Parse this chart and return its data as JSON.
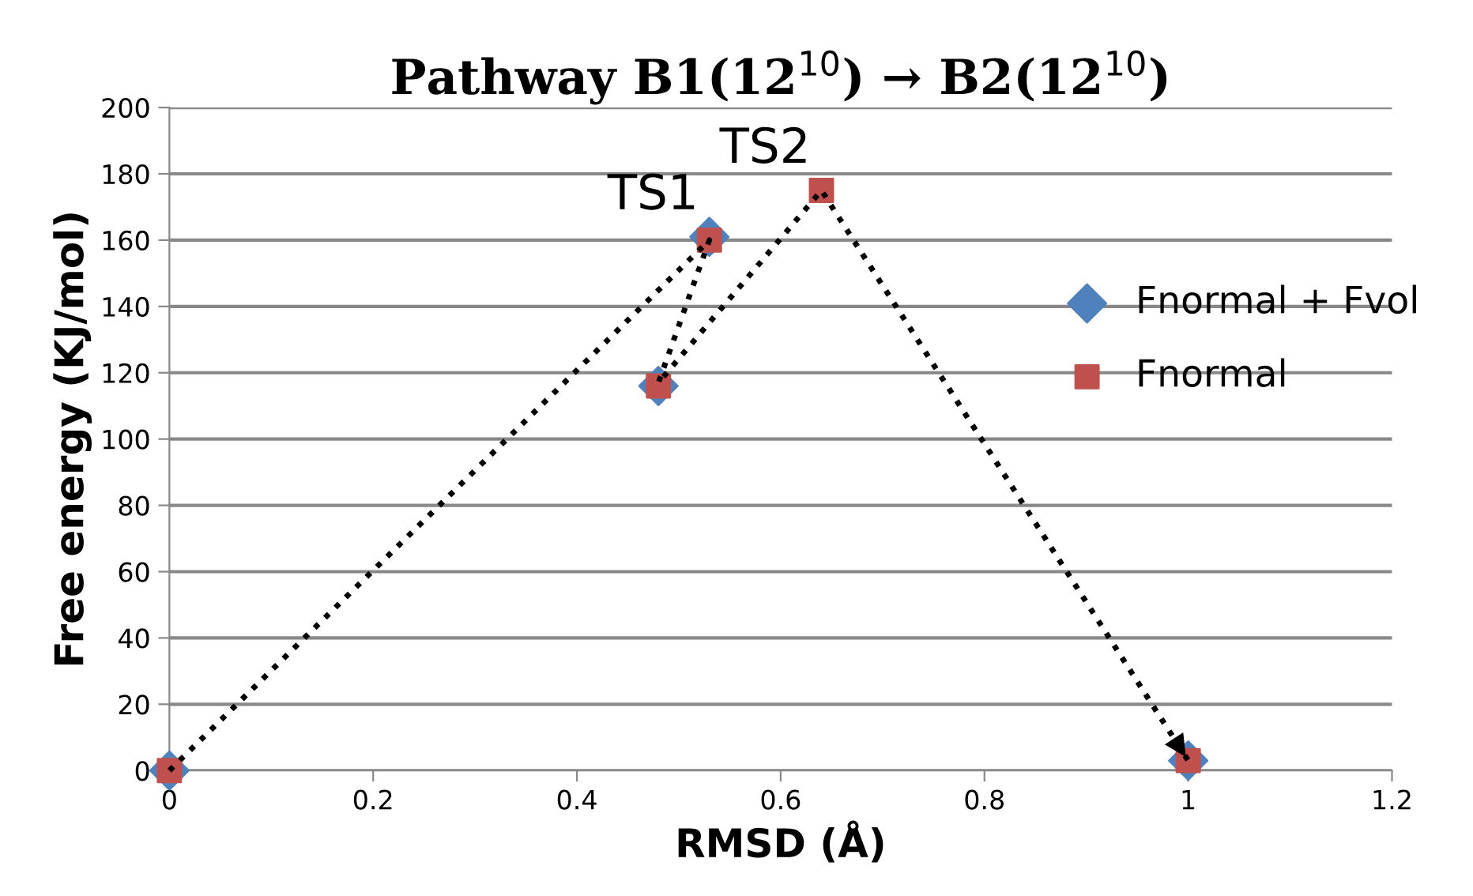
{
  "chart_data": {
    "type": "scatter",
    "title": "Pathway B1(12$^{10}$) → B2(12$^{10}$)",
    "xlabel": "RMSD (Å)",
    "ylabel": "Free energy (KJ/mol)",
    "xlim": [
      0,
      1.2
    ],
    "xticks": [
      0,
      0.2,
      0.4,
      0.6,
      0.8,
      1,
      1.2
    ],
    "ylim": [
      0,
      200
    ],
    "yticks": [
      0,
      20,
      40,
      60,
      80,
      100,
      120,
      140,
      160,
      180,
      200
    ],
    "grid": "y",
    "legend": "right",
    "series": [
      {
        "type": "line",
        "color": "#000000",
        "line_style": "dotted",
        "marker": "none",
        "x": [
          0,
          0.53,
          0.48,
          0.64,
          1.0
        ],
        "values": [
          0,
          160,
          117,
          175,
          3
        ]
      },
      {
        "name": "Fnormal + Fvol",
        "color": "#4f81bd",
        "marker": "diamond",
        "x": [
          0,
          0.48,
          0.53,
          1.0
        ],
        "values": [
          0,
          116,
          161,
          3
        ]
      },
      {
        "name": "Fnormal",
        "color": "#c0504d",
        "marker": "square",
        "x": [
          0,
          0.48,
          0.53,
          0.64,
          1.0
        ],
        "values": [
          0,
          116,
          160,
          175,
          3
        ]
      }
    ],
    "annotations": [
      {
        "text": "TS1",
        "x": 0.53,
        "y": 161
      },
      {
        "text": "TS2",
        "x": 0.64,
        "y": 175
      }
    ]
  }
}
